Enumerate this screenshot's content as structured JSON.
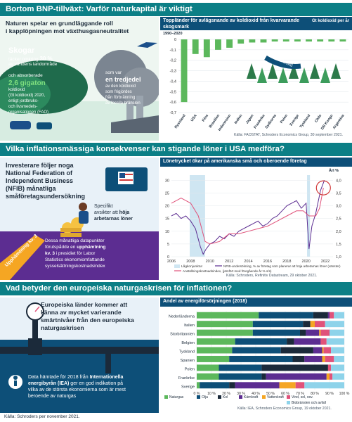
{
  "sections": [
    {
      "header": "Bortom BNP-tillväxt: Varför naturkapital är viktigt"
    },
    {
      "header": "Vilka inflationsmässiga konsekvenser kan stigande löner i USA medföra?"
    },
    {
      "header": "Vad betyder den europeiska naturgaskrisen för inflationen?"
    }
  ],
  "forest": {
    "intro": [
      "Naturen spelar en grundläggande roll",
      "i kapplöpningen mot växthusgasneutralitet"
    ],
    "skogar_title": "Skogar",
    "skogar_line1_prefix": "täcker omkring ",
    "skogar_pct": "30 %",
    "skogar_line2": "av världens landområde",
    "absorb_prefix": "och absorberade",
    "absorb_value": "2,6 gigaton",
    "absorb_lines": [
      "koldioxid",
      "(Gt koldioxid) 2020,",
      "enligt jordbruks-",
      "och livsmedels-",
      "organisationen (FAO)"
    ],
    "tredjedel_lines": [
      "som var",
      "en tredjedel",
      "av den koldioxid",
      "som frigjordes",
      "från förbränning",
      "av fossila bränslen"
    ],
    "tredjedel_bold": "en tredjedel"
  },
  "wages": {
    "intro_lines": [
      "Investerare följer noga",
      "National Federation of",
      "Independent Business",
      "(NFIB) månatliga",
      "småföretagsundersökning"
    ],
    "specifikt_lines": [
      "Specifikt",
      "avsikter att ",
      "höja",
      "arbetarnas löner"
    ],
    "ramp_label": "Upphämtning kv. 3",
    "detail_lines": [
      "Dessa månatliga datapunkter",
      "förutspådde en ",
      "upphämtning",
      "kv. 3",
      " i presidiet för Labor",
      "Statistics ekonomiomfattande",
      "sysselsättningskostnadsindex"
    ]
  },
  "gas": {
    "intro_lines": [
      "Europeiska länder kommer att",
      "känna av mycket varierande",
      "smärtnivåer från den europeiska",
      "naturgaskrisen"
    ],
    "iea_lines": [
      "Data hämtade för 2018 från ",
      "Internationella",
      "energibyrån (IEA)",
      " ger en god indikation på",
      "vilka av de största ekonomierna som är mest",
      "beroende av naturgas"
    ]
  },
  "footer": "Källa: Schroders per november 2021.",
  "colors": {
    "teal": "#0c7f86",
    "navy": "#0d4f78",
    "green": "#5cb85c",
    "purple": "#5c2d91",
    "orange": "#f5a623",
    "lightblue": "#cfe6f2"
  },
  "chart_data": [
    {
      "type": "bar",
      "title": "Toppländer för avlägsnande av koldioxid från kvarvarande skogsmark",
      "subtitle": "1990–2020",
      "unit_label": "Gt koldioxid per år",
      "categories": [
        "Ryssland",
        "USA",
        "Kina",
        "Brasilien",
        "Indonesien",
        "Indien",
        "Japan",
        "Frankrike",
        "Sydkorea",
        "Polen",
        "Sverige",
        "Tyskland",
        "Chile",
        "DR Kongo",
        "Argentina"
      ],
      "values": [
        -0.6,
        -0.14,
        -0.17,
        -0.1,
        -0.08,
        -0.04,
        -0.03,
        -0.03,
        -0.02,
        -0.02,
        -0.02,
        -0.02,
        -0.02,
        -0.02,
        -0.02
      ],
      "ylim": [
        -0.7,
        0
      ],
      "yticks": [
        "0",
        "-0,1",
        "-0,2",
        "-0,3",
        "-0,4",
        "-0,5",
        "-0,6",
        "-0,7"
      ],
      "annotation": "koldioxid",
      "source": "Källa: FAOSTAT, Schroders Economics Group, 30 september 2021."
    },
    {
      "type": "line",
      "title": "Lönetrycket ökar på amerikanska små och oberoende företag",
      "right_axis_label": "Årl %",
      "x_range": [
        2006,
        2022.8
      ],
      "xticks": [
        "2006",
        "2008",
        "2010",
        "2012",
        "2014",
        "2016",
        "2018",
        "2020",
        "2022"
      ],
      "yticks_left": [
        "0",
        "5",
        "10",
        "15",
        "20",
        "25",
        "30"
      ],
      "yticks_right": [
        "1,0",
        "1,5",
        "2,0",
        "2,5",
        "3,0",
        "3,5",
        "4,0"
      ],
      "ylim_left": [
        0,
        32
      ],
      "ylim_right": [
        1.0,
        4.2
      ],
      "recessions_label": "Lågkonjunktur",
      "recessions": [
        [
          2007.9,
          2009.5
        ],
        [
          2020.1,
          2020.4
        ]
      ],
      "series": [
        {
          "name": "NFIB-undersökning, % av företag som planerar att höja arbetarnas löner (vänster)",
          "axis": "left",
          "x": [
            2006.0,
            2006.5,
            2007.0,
            2007.5,
            2008.0,
            2008.5,
            2009.0,
            2009.3,
            2009.6,
            2010.0,
            2010.5,
            2011.0,
            2011.5,
            2012.0,
            2012.5,
            2013.0,
            2013.5,
            2014.0,
            2014.5,
            2015.0,
            2015.5,
            2016.0,
            2016.5,
            2017.0,
            2017.5,
            2018.0,
            2018.5,
            2019.0,
            2019.5,
            2020.0,
            2020.3,
            2020.6,
            2021.0,
            2021.5,
            2021.9
          ],
          "y": [
            16,
            17,
            15,
            16,
            14,
            11,
            4,
            1,
            3,
            5,
            6,
            8,
            7,
            9,
            8,
            10,
            11,
            12,
            13,
            14,
            12,
            13,
            15,
            16,
            18,
            20,
            21,
            22,
            19,
            21,
            3,
            12,
            17,
            26,
            30
          ]
        },
        {
          "name": "Anställningskostnadsindex, (jämfört med föregående år % s/s)",
          "axis": "right",
          "x": [
            2006.0,
            2007.0,
            2008.0,
            2008.8,
            2009.5,
            2010.0,
            2011.0,
            2012.0,
            2013.0,
            2014.0,
            2015.0,
            2016.0,
            2017.0,
            2018.0,
            2019.0,
            2019.7,
            2020.3,
            2021.0,
            2021.4,
            2021.8
          ],
          "y": [
            3.1,
            3.3,
            3.1,
            2.6,
            1.6,
            1.5,
            1.6,
            1.9,
            1.9,
            2.0,
            2.1,
            2.2,
            2.4,
            2.6,
            2.8,
            2.8,
            2.6,
            2.6,
            2.9,
            3.7
          ]
        }
      ],
      "source": "Källa: Schroders, Refinitiv Datastream, 29 oktober 2021."
    },
    {
      "type": "bar",
      "orientation": "horizontal-stacked",
      "title": "Andel av energiförsörjningen (2018)",
      "categories": [
        "Nederländerna",
        "Italien",
        "Storbritannien",
        "Belgien",
        "Tyskland",
        "Spanien",
        "Polen",
        "Frankrike",
        "Sverige"
      ],
      "xticks": [
        "0 %",
        "10 %",
        "20 %",
        "30 %",
        "40 %",
        "50 %",
        "60 %",
        "70 %",
        "80 %",
        "90 %",
        "100 %"
      ],
      "series": [
        {
          "name": "Naturgas",
          "color": "#5cb85c",
          "values": [
            42,
            38,
            38,
            26,
            24,
            22,
            15,
            15,
            2
          ]
        },
        {
          "name": "Olja",
          "color": "#0d4f78",
          "values": [
            37,
            34,
            32,
            35,
            33,
            43,
            29,
            29,
            20
          ]
        },
        {
          "name": "Kol",
          "color": "#1b2a3a",
          "values": [
            10,
            5,
            4,
            5,
            22,
            8,
            45,
            3,
            4
          ]
        },
        {
          "name": "Kärnkraft",
          "color": "#5c2d91",
          "values": [
            1,
            0,
            9,
            18,
            6,
            12,
            0,
            41,
            30
          ]
        },
        {
          "name": "Vattenkraft",
          "color": "#f5a623",
          "values": [
            0,
            3,
            1,
            0,
            1,
            2,
            0,
            2,
            11
          ]
        },
        {
          "name": "Vind, sol, osv.",
          "color": "#e0527a",
          "values": [
            3,
            7,
            6,
            4,
            5,
            6,
            2,
            2,
            6
          ]
        },
        {
          "name": "Biobränslen och avfall",
          "color": "#8ed3ea",
          "values": [
            7,
            13,
            10,
            12,
            9,
            7,
            9,
            8,
            27
          ]
        }
      ],
      "source": "Källa: IEA, Schroders Economics Group, 19 oktober 2021."
    }
  ]
}
